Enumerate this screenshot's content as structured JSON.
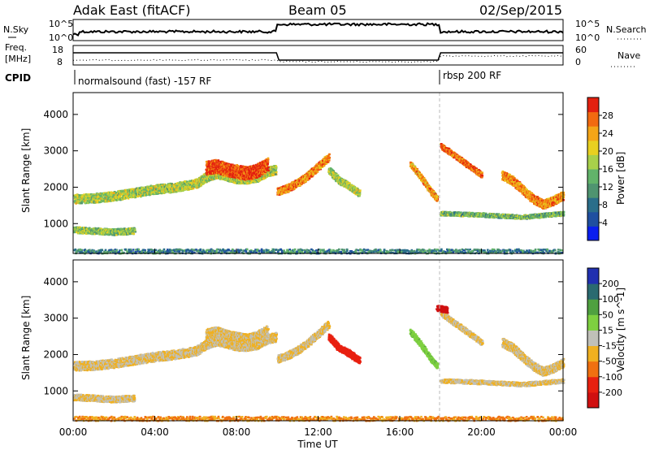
{
  "header": {
    "station": "Adak East (fitACF)",
    "beam": "Beam 05",
    "date": "02/Sep/2015"
  },
  "panels": {
    "nsky": {
      "label": "N.Sky",
      "right_label": "N.Search",
      "ticks": [
        "10^5",
        "10^0"
      ]
    },
    "freq": {
      "label_top": "Freq.",
      "label_unit": "[MHz]",
      "ticks": [
        "18",
        "8"
      ],
      "right_label": "Nave",
      "right_ticks": [
        "60",
        "0"
      ]
    },
    "cpid": {
      "label": "CPID",
      "mode1": "normalsound (fast) -157 RF",
      "mode2": "rbsp 200 RF"
    }
  },
  "xaxis": {
    "label": "Time UT",
    "ticks": [
      "00:00",
      "04:00",
      "08:00",
      "12:00",
      "16:00",
      "20:00",
      "00:00"
    ]
  },
  "chart_data": [
    {
      "type": "heatmap",
      "title": "",
      "ylabel": "Slant Range [km]",
      "y_ticks": [
        "4000",
        "3000",
        "2000",
        "1000"
      ],
      "colorbar_label": "Power [dB]",
      "colorbar_ticks": [
        "28",
        "24",
        "20",
        "16",
        "12",
        "8",
        "4"
      ],
      "colorbar_colors": [
        "#0a1eef",
        "#1f4fa0",
        "#2a6e8a",
        "#4f9470",
        "#62b36a",
        "#a8d04a",
        "#e8d020",
        "#f4a518",
        "#f26a10",
        "#e32010"
      ],
      "xlim": [
        0,
        24
      ],
      "ylim": [
        180,
        4600
      ],
      "bands": [
        {
          "x": [
            0,
            1,
            2,
            3,
            4,
            5,
            6,
            6.5,
            7,
            7.5,
            8,
            8.5,
            9,
            9.5,
            9.9
          ],
          "y": [
            1700,
            1720,
            1780,
            1870,
            1960,
            2020,
            2120,
            2300,
            2400,
            2330,
            2250,
            2250,
            2300,
            2450,
            2500
          ],
          "width": 250,
          "level": 0.55
        },
        {
          "x": [
            0,
            1,
            2,
            3
          ],
          "y": [
            850,
            820,
            790,
            820
          ],
          "width": 170,
          "level": 0.5
        },
        {
          "x": [
            6.5,
            7,
            7.5,
            8,
            8.5,
            9,
            9.5
          ],
          "y": [
            2550,
            2600,
            2500,
            2450,
            2400,
            2480,
            2650
          ],
          "width": 360,
          "level": 0.92
        },
        {
          "x": [
            10,
            10.5,
            11,
            11.5,
            12,
            12.5
          ],
          "y": [
            1900,
            2000,
            2150,
            2350,
            2600,
            2850
          ],
          "width": 200,
          "level": 0.8
        },
        {
          "x": [
            12.5,
            13,
            13.5,
            14
          ],
          "y": [
            2500,
            2200,
            2050,
            1850
          ],
          "width": 180,
          "level": 0.55
        },
        {
          "x": [
            16.5,
            17,
            17.5,
            17.8
          ],
          "y": [
            2650,
            2300,
            1900,
            1700
          ],
          "width": 140,
          "level": 0.75
        },
        {
          "x": [
            18,
            18.5,
            19,
            19.5,
            20
          ],
          "y": [
            3150,
            2950,
            2750,
            2550,
            2350
          ],
          "width": 140,
          "level": 0.85
        },
        {
          "x": [
            18,
            19,
            20,
            21,
            22,
            23,
            24
          ],
          "y": [
            1300,
            1280,
            1260,
            1230,
            1200,
            1250,
            1300
          ],
          "width": 110,
          "level": 0.45
        },
        {
          "x": [
            21,
            21.5,
            22,
            22.5,
            23,
            23.5,
            24
          ],
          "y": [
            2350,
            2200,
            1950,
            1700,
            1550,
            1650,
            1800
          ],
          "width": 230,
          "level": 0.78
        },
        {
          "x": [
            0,
            4,
            8,
            12,
            16,
            20,
            24
          ],
          "y": [
            260,
            260,
            260,
            260,
            260,
            260,
            260
          ],
          "width": 120,
          "level": 0.3
        }
      ]
    },
    {
      "type": "heatmap",
      "title": "",
      "ylabel": "Slant Range [km]",
      "y_ticks": [
        "4000",
        "3000",
        "2000",
        "1000"
      ],
      "colorbar_label": "Velocity [m s^-1]",
      "colorbar_ticks": [
        "200",
        "100",
        "50",
        "15",
        "-15",
        "-50",
        "-100",
        "-200"
      ],
      "colorbar_colors": [
        "#2030b0",
        "#2a6a70",
        "#4fa040",
        "#7ed040",
        "#c0c0b8",
        "#f0b020",
        "#f07010",
        "#e82010",
        "#d01010"
      ],
      "xlim": [
        0,
        24
      ],
      "ylim": [
        180,
        4600
      ],
      "bands": [
        {
          "x": [
            0,
            1,
            2,
            3,
            4,
            5,
            6,
            6.5,
            7,
            7.5,
            8,
            8.5,
            9,
            9.5,
            9.9
          ],
          "y": [
            1700,
            1720,
            1780,
            1870,
            1960,
            2020,
            2120,
            2300,
            2400,
            2330,
            2250,
            2250,
            2300,
            2450,
            2500
          ],
          "width": 250,
          "velocity": -15
        },
        {
          "x": [
            0,
            1,
            2,
            3
          ],
          "y": [
            850,
            820,
            790,
            820
          ],
          "width": 170,
          "velocity": -15
        },
        {
          "x": [
            6.5,
            7,
            7.5,
            8,
            8.5,
            9,
            9.5
          ],
          "y": [
            2550,
            2600,
            2500,
            2450,
            2400,
            2480,
            2650
          ],
          "width": 360,
          "velocity": -15
        },
        {
          "x": [
            10,
            10.5,
            11,
            11.5,
            12,
            12.5
          ],
          "y": [
            1900,
            2000,
            2150,
            2350,
            2600,
            2850
          ],
          "width": 200,
          "velocity": -15
        },
        {
          "x": [
            12.5,
            13,
            13.5,
            14
          ],
          "y": [
            2500,
            2200,
            2050,
            1850
          ],
          "width": 180,
          "velocity": -150
        },
        {
          "x": [
            16.5,
            17,
            17.5,
            17.8
          ],
          "y": [
            2650,
            2300,
            1900,
            1700
          ],
          "width": 140,
          "velocity": 40
        },
        {
          "x": [
            18,
            18.5,
            19,
            19.5,
            20
          ],
          "y": [
            3150,
            2950,
            2750,
            2550,
            2350
          ],
          "width": 140,
          "velocity": -15
        },
        {
          "x": [
            18,
            19,
            20,
            21,
            22,
            23,
            24
          ],
          "y": [
            1300,
            1280,
            1260,
            1230,
            1200,
            1250,
            1300
          ],
          "width": 110,
          "velocity": -15
        },
        {
          "x": [
            21,
            21.5,
            22,
            22.5,
            23,
            23.5,
            24
          ],
          "y": [
            2350,
            2200,
            1950,
            1700,
            1550,
            1650,
            1800
          ],
          "width": 230,
          "velocity": -15
        },
        {
          "x": [
            17.8,
            18.3
          ],
          "y": [
            3300,
            3250
          ],
          "width": 160,
          "velocity": -250
        },
        {
          "x": [
            0,
            4,
            8,
            12,
            16,
            20,
            24
          ],
          "y": [
            260,
            260,
            260,
            260,
            260,
            260,
            260
          ],
          "width": 120,
          "velocity": -60
        }
      ]
    }
  ]
}
